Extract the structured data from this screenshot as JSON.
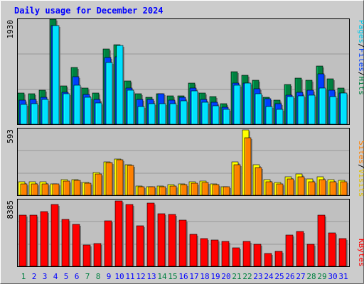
{
  "title": "Daily usage for December 2024",
  "colors": {
    "background": "#cccccc",
    "panel": "#c0c0c0",
    "hits": "#008040",
    "files": "#0040ff",
    "pages": "#00e0ff",
    "visits": "#ffff00",
    "sites": "#ff8000",
    "kbytes": "#ff0000",
    "title": "#0000ff",
    "weekday_label": "#0000ff",
    "weekend_label": "#008040"
  },
  "chart_data": [
    {
      "type": "bar",
      "name": "hits-files-pages",
      "y_max_label": "1930",
      "ylim": [
        0,
        1930
      ],
      "legend_hits": "Hits",
      "legend_files": "Files",
      "legend_pages": "Pages",
      "legend_sep1": "/",
      "legend_sep2": "/",
      "categories": [
        "1",
        "2",
        "3",
        "4",
        "5",
        "6",
        "7",
        "8",
        "9",
        "10",
        "11",
        "12",
        "13",
        "14",
        "15",
        "16",
        "17",
        "18",
        "19",
        "20",
        "21",
        "22",
        "23",
        "24",
        "25",
        "26",
        "27",
        "28",
        "29",
        "30",
        "31"
      ],
      "series": [
        {
          "name": "Hits",
          "values": [
            570,
            560,
            630,
            1930,
            710,
            1040,
            670,
            580,
            1380,
            1460,
            790,
            560,
            500,
            560,
            520,
            520,
            760,
            580,
            510,
            380,
            960,
            900,
            810,
            500,
            440,
            730,
            850,
            810,
            1070,
            830,
            670
          ]
        },
        {
          "name": "Files",
          "values": [
            440,
            450,
            500,
            1810,
            590,
            870,
            550,
            460,
            1230,
            1240,
            660,
            460,
            450,
            560,
            440,
            490,
            660,
            460,
            400,
            310,
            750,
            760,
            650,
            470,
            380,
            530,
            590,
            620,
            920,
            630,
            580
          ]
        },
        {
          "name": "Pages",
          "values": [
            370,
            380,
            450,
            1810,
            560,
            720,
            500,
            390,
            1130,
            1450,
            620,
            330,
            380,
            380,
            380,
            430,
            610,
            410,
            340,
            270,
            720,
            760,
            560,
            330,
            270,
            510,
            520,
            540,
            670,
            510,
            580
          ]
        }
      ]
    },
    {
      "type": "bar",
      "name": "visits-sites",
      "y_max_label": "593",
      "ylim": [
        0,
        593
      ],
      "legend_visits": "Visits",
      "legend_sites": "Sites",
      "legend_sep": "/",
      "series": [
        {
          "name": "Visits",
          "values": [
            125,
            125,
            125,
            105,
            140,
            145,
            115,
            205,
            300,
            330,
            275,
            85,
            80,
            85,
            95,
            105,
            125,
            130,
            105,
            75,
            300,
            593,
            280,
            140,
            115,
            165,
            195,
            150,
            170,
            140,
            135
          ]
        },
        {
          "name": "Sites",
          "values": [
            105,
            105,
            100,
            100,
            130,
            135,
            110,
            195,
            295,
            320,
            270,
            75,
            75,
            80,
            85,
            95,
            110,
            115,
            95,
            75,
            275,
            520,
            250,
            120,
            105,
            150,
            170,
            125,
            145,
            125,
            125
          ]
        }
      ]
    },
    {
      "type": "bar",
      "name": "kbytes",
      "y_max_label": "8385",
      "ylim": [
        0,
        8385
      ],
      "legend_kbytes": "KBytes",
      "series": [
        {
          "name": "KBytes",
          "values": [
            6550,
            6550,
            7050,
            7900,
            6050,
            5400,
            2750,
            2950,
            5800,
            8385,
            7950,
            5200,
            8150,
            6700,
            6650,
            5900,
            4100,
            3550,
            3350,
            3150,
            2350,
            3200,
            2850,
            1600,
            1950,
            4050,
            4450,
            2850,
            6550,
            4300,
            3550
          ]
        }
      ]
    }
  ]
}
